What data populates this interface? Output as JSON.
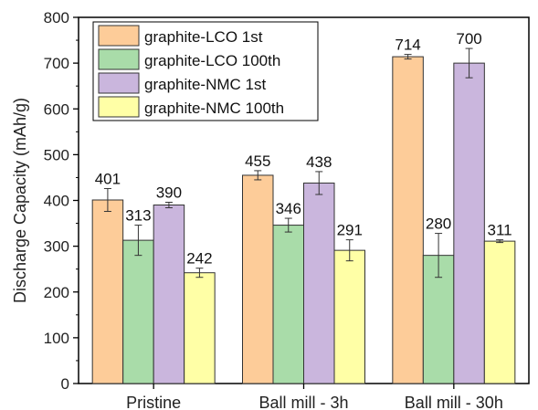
{
  "chart_data": {
    "type": "bar",
    "title": "",
    "xlabel": "",
    "ylabel": "Discharge Capacity (mAh/g)",
    "ylim": [
      0,
      800
    ],
    "yticks": [
      0,
      100,
      200,
      300,
      400,
      500,
      600,
      700,
      800
    ],
    "categories": [
      "Pristine",
      "Ball mill - 3h",
      "Ball mill - 30h"
    ],
    "legend_position": "top-left",
    "grid": false,
    "series": [
      {
        "name": "graphite-LCO 1st",
        "color": "#FDCC99",
        "values": [
          401,
          455,
          714
        ],
        "errors": [
          25,
          10,
          5
        ],
        "labels": [
          "401",
          "455",
          "714"
        ]
      },
      {
        "name": "graphite-LCO 100th",
        "color": "#A9DCA9",
        "values": [
          313,
          346,
          280
        ],
        "errors": [
          33,
          15,
          48
        ],
        "labels": [
          "313",
          "346",
          "280"
        ]
      },
      {
        "name": "graphite-NMC 1st",
        "color": "#CAB6DD",
        "values": [
          390,
          438,
          700
        ],
        "errors": [
          6,
          25,
          32
        ],
        "labels": [
          "390",
          "438",
          "700"
        ]
      },
      {
        "name": "graphite-NMC 100th",
        "color": "#FFFFA6",
        "values": [
          242,
          291,
          311
        ],
        "errors": [
          10,
          23,
          3
        ],
        "labels": [
          "242",
          "291",
          "311"
        ]
      }
    ]
  }
}
